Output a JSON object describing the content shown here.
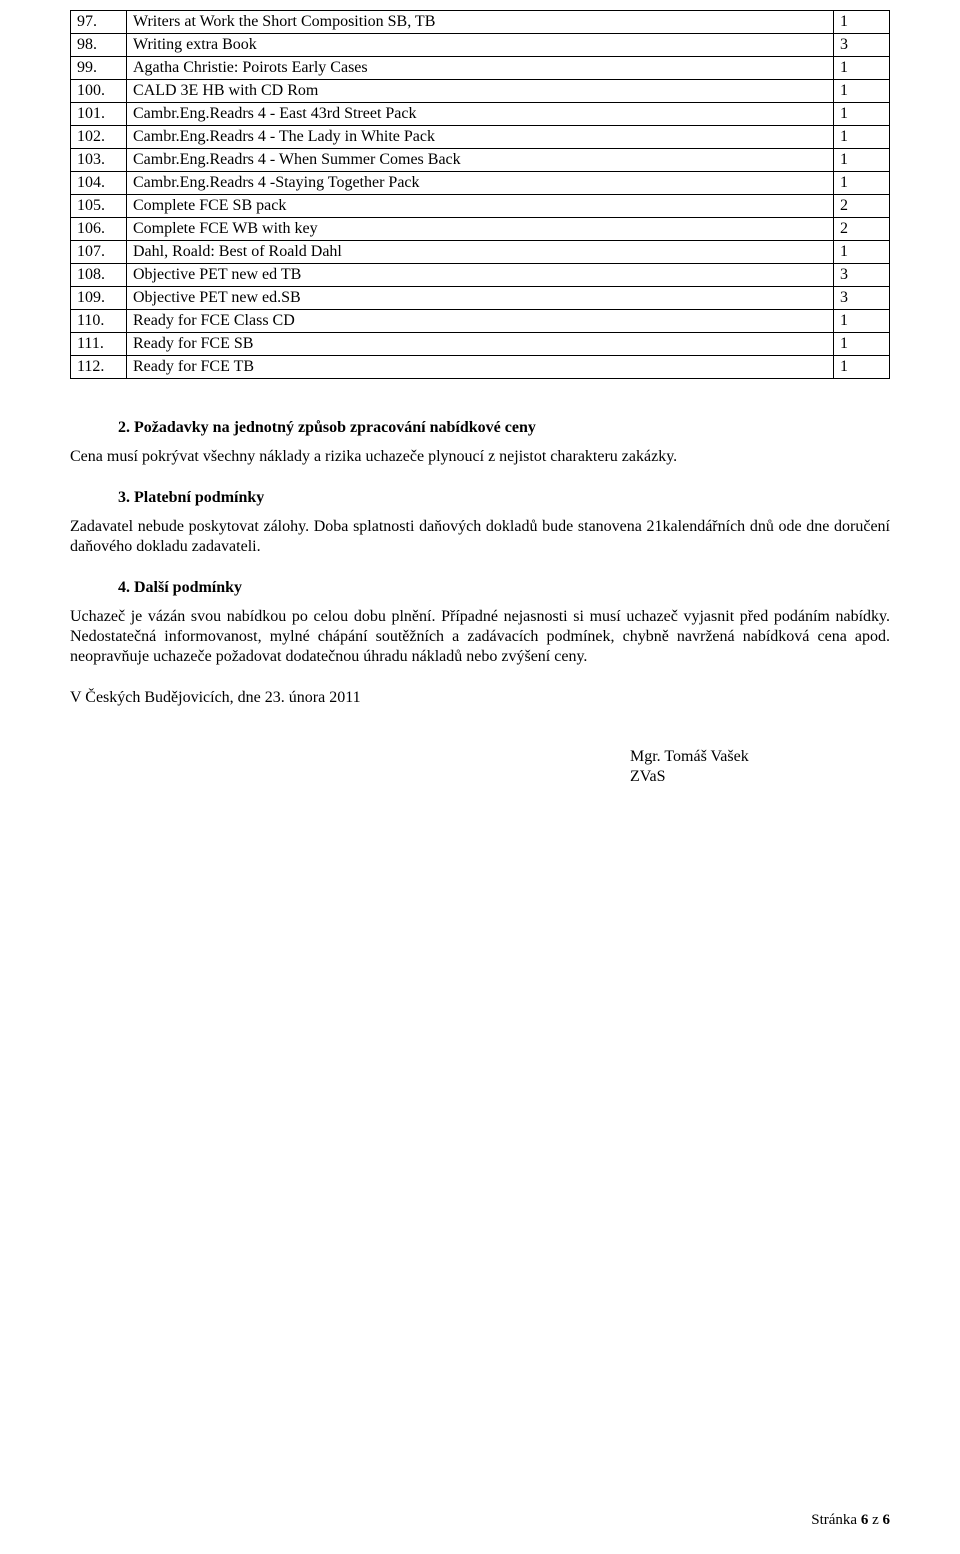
{
  "table": {
    "rows": [
      {
        "n": "97.",
        "desc": "Writers at Work the Short Composition SB, TB",
        "q": "1"
      },
      {
        "n": "98.",
        "desc": "Writing extra Book",
        "q": "3"
      },
      {
        "n": "99.",
        "desc": "Agatha Christie: Poirots Early Cases",
        "q": "1"
      },
      {
        "n": "100.",
        "desc": "CALD 3E HB with CD Rom",
        "q": "1"
      },
      {
        "n": "101.",
        "desc": "Cambr.Eng.Readrs 4 - East 43rd Street Pack",
        "q": "1"
      },
      {
        "n": "102.",
        "desc": "Cambr.Eng.Readrs 4 - The Lady in White Pack",
        "q": "1"
      },
      {
        "n": "103.",
        "desc": "Cambr.Eng.Readrs 4 - When Summer Comes Back",
        "q": "1"
      },
      {
        "n": "104.",
        "desc": "Cambr.Eng.Readrs 4 -Staying Together Pack",
        "q": "1"
      },
      {
        "n": "105.",
        "desc": "Complete FCE SB pack",
        "q": "2"
      },
      {
        "n": "106.",
        "desc": "Complete FCE WB with key",
        "q": "2"
      },
      {
        "n": "107.",
        "desc": "Dahl, Roald: Best of Roald Dahl",
        "q": "1"
      },
      {
        "n": "108.",
        "desc": "Objective PET new ed TB",
        "q": "3"
      },
      {
        "n": "109.",
        "desc": "Objective PET new ed.SB",
        "q": "3"
      },
      {
        "n": "110.",
        "desc": "Ready for FCE Class CD",
        "q": "1"
      },
      {
        "n": "111.",
        "desc": "Ready for FCE SB",
        "q": "1"
      },
      {
        "n": "112.",
        "desc": "Ready for FCE TB",
        "q": "1"
      }
    ]
  },
  "sections": {
    "s2": {
      "heading": "2. Požadavky na jednotný způsob zpracování nabídkové ceny",
      "body": "Cena musí pokrývat všechny náklady a rizika uchazeče plynoucí z nejistot charakteru zakázky."
    },
    "s3": {
      "heading": "3. Platební podmínky",
      "body": "Zadavatel nebude poskytovat zálohy. Doba splatnosti daňových dokladů bude stanovena 21kalendářních dnů ode dne doručení daňového dokladu zadavateli."
    },
    "s4": {
      "heading": "4. Další podmínky",
      "body": "Uchazeč je vázán svou nabídkou po celou dobu plnění. Případné nejasnosti si musí uchazeč vyjasnit před podáním nabídky. Nedostatečná informovanost, mylné chápání soutěžních a zadávacích podmínek, chybně navržená nabídková cena apod. neopravňuje uchazeče požadovat dodatečnou úhradu nákladů nebo zvýšení ceny."
    }
  },
  "date_line": "V Českých Budějovicích, dne 23. února 2011",
  "signature": {
    "name": "Mgr. Tomáš Vašek",
    "org": "ZVaS"
  },
  "footer": {
    "label": "Stránka ",
    "current": "6",
    "sep": " z ",
    "total": "6"
  }
}
